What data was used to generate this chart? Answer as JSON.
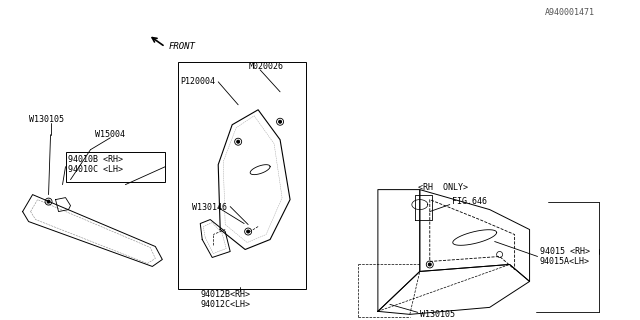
{
  "bg_color": "#ffffff",
  "line_color": "#000000",
  "watermark": "A940001471",
  "labels": {
    "part1_a": "94012B<RH>",
    "part1_b": "94012C<LH>",
    "part1_w": "W130146",
    "part2_a": "94010B <RH>",
    "part2_b": "94010C <LH>",
    "part2_w1": "W15004",
    "part2_w2": "W130105",
    "part3_w": "W130105",
    "part3_a": "94015 <RH>",
    "part3_b": "94015A<LH>",
    "part3_fig": "FIG.646",
    "part3_rh": "<RH  ONLY>",
    "part4_p": "P120004",
    "part4_m": "M020026",
    "front_label": "FRONT"
  },
  "font_size": 6.5,
  "small_font": 6.0
}
